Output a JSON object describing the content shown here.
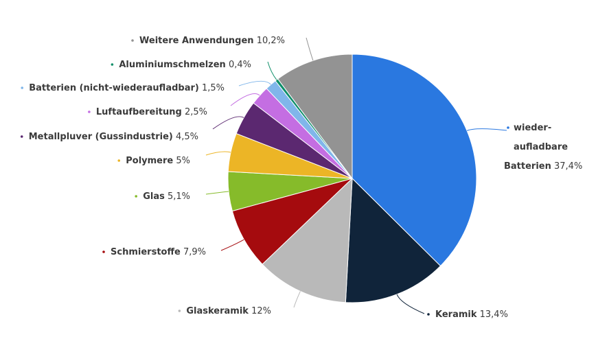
{
  "chart_data": {
    "type": "pie",
    "title": "",
    "slices": [
      {
        "name": "wieder-aufladbare Batterien",
        "name_lines": [
          "wieder-",
          "aufladbare",
          "Batterien"
        ],
        "value": 37.4,
        "value_label": "37,4%",
        "color": "#2a78e0"
      },
      {
        "name": "Keramik",
        "value": 13.4,
        "value_label": "13,4%",
        "color": "#10243a"
      },
      {
        "name": "Glaskeramik",
        "value": 12,
        "value_label": "12%",
        "color": "#b9b9b9"
      },
      {
        "name": "Schmierstoffe",
        "value": 7.9,
        "value_label": "7,9%",
        "color": "#a50b0e"
      },
      {
        "name": "Glas",
        "value": 5.1,
        "value_label": "5,1%",
        "color": "#86bb2a"
      },
      {
        "name": "Polymere",
        "value": 5,
        "value_label": "5%",
        "color": "#ecb526"
      },
      {
        "name": "Metallpluver (Gussindustrie)",
        "value": 4.5,
        "value_label": "4,5%",
        "color": "#5b2870"
      },
      {
        "name": "Luftaufbereitung",
        "value": 2.5,
        "value_label": "2,5%",
        "color": "#c46ee2"
      },
      {
        "name": "Batterien (nicht-wiederaufladbar)",
        "value": 1.5,
        "value_label": "1,5%",
        "color": "#80b6ea"
      },
      {
        "name": "Aluminiumschmelzen",
        "value": 0.4,
        "value_label": "0,4%",
        "color": "#0f8f6a"
      },
      {
        "name": "Weitere Anwendungen",
        "value": 10.2,
        "value_label": "10,2%",
        "color": "#939393"
      }
    ]
  }
}
